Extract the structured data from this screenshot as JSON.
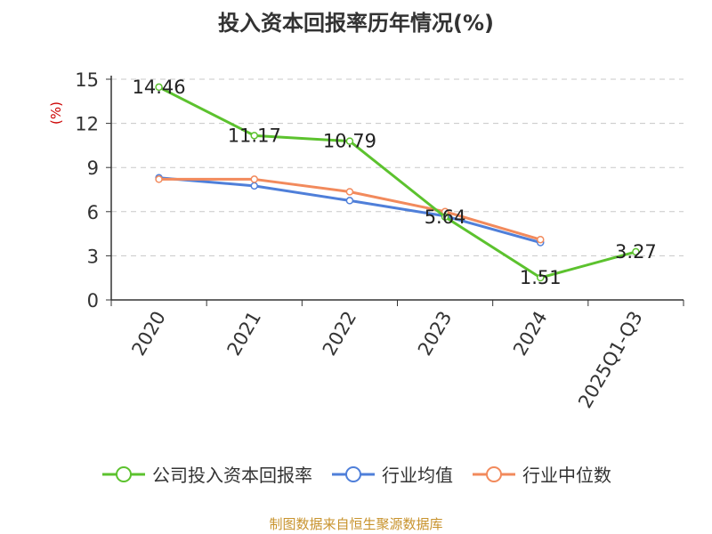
{
  "chart_data": {
    "type": "line",
    "title": "投入资本回报率历年情况(%)",
    "ylabel": "(%)",
    "categories": [
      "2020",
      "2021",
      "2022",
      "2023",
      "2024",
      "2025Q1-Q3"
    ],
    "ylim": [
      0,
      15
    ],
    "yticks": [
      0,
      3,
      6,
      9,
      12,
      15
    ],
    "grid": true,
    "legend_position": "bottom",
    "series": [
      {
        "name": "公司投入资本回报率",
        "color": "#5cc22e",
        "values": [
          14.46,
          11.17,
          10.79,
          5.64,
          1.51,
          3.27
        ],
        "labels": [
          "14.46",
          "11.17",
          "10.79",
          "5.64",
          "1.51",
          "3.27"
        ]
      },
      {
        "name": "行业均值",
        "color": "#4f7fd9",
        "values": [
          8.3,
          7.75,
          6.75,
          5.7,
          3.9,
          null
        ]
      },
      {
        "name": "行业中位数",
        "color": "#f28a5c",
        "values": [
          8.2,
          8.2,
          7.35,
          6.0,
          4.1,
          null
        ]
      }
    ]
  },
  "source_note": "制图数据来自恒生聚源数据库"
}
